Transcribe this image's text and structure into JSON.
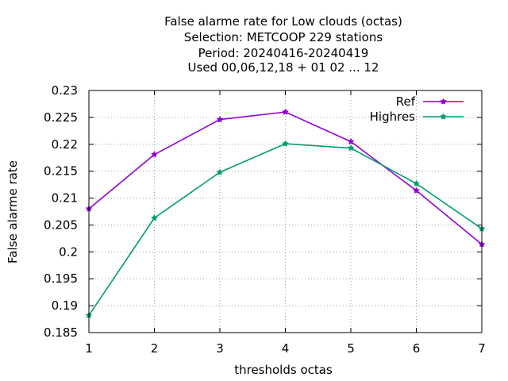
{
  "chart_data": {
    "type": "line",
    "title_lines": [
      "False alarme rate  for Low clouds (octas)",
      "Selection: METCOOP    229 stations",
      "Period: 20240416-20240419",
      "Used  00,06,12,18 + 01 02 ... 12"
    ],
    "xlabel": "thresholds octas",
    "ylabel": "False alarme rate",
    "x": [
      1,
      2,
      3,
      4,
      5,
      6,
      7
    ],
    "xlim": [
      1,
      7
    ],
    "ylim": [
      0.185,
      0.23
    ],
    "x_ticks": [
      "1",
      "2",
      "3",
      "4",
      "5",
      "6",
      "7"
    ],
    "y_ticks": [
      "0.185",
      "0.19",
      "0.195",
      "0.2",
      "0.205",
      "0.21",
      "0.215",
      "0.22",
      "0.225",
      "0.23"
    ],
    "grid": true,
    "legend_position": "top-right",
    "series": [
      {
        "name": "Ref",
        "color": "#9400d3",
        "values": [
          0.208,
          0.2181,
          0.2246,
          0.226,
          0.2205,
          0.2114,
          0.2014
        ]
      },
      {
        "name": "Highres",
        "color": "#009e73",
        "values": [
          0.1882,
          0.2063,
          0.2148,
          0.2201,
          0.2193,
          0.2127,
          0.2043
        ]
      }
    ]
  }
}
